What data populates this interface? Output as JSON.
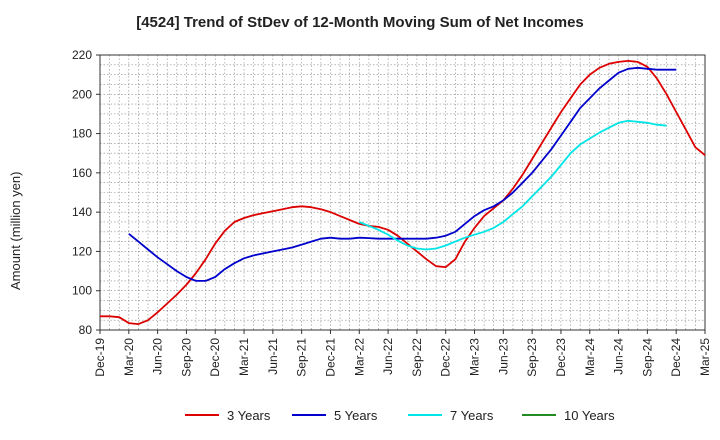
{
  "chart_data": {
    "type": "line",
    "title": "[4524]  Trend of StDev of 12-Month Moving Sum of Net Incomes",
    "ylabel": "Amount (million yen)",
    "xlabel": "",
    "ylim": [
      80,
      220
    ],
    "yticks": [
      80,
      100,
      120,
      140,
      160,
      180,
      200,
      220
    ],
    "xticks": [
      "Dec-19",
      "Mar-20",
      "Jun-20",
      "Sep-20",
      "Dec-20",
      "Mar-21",
      "Jun-21",
      "Sep-21",
      "Dec-21",
      "Mar-22",
      "Jun-22",
      "Sep-22",
      "Dec-22",
      "Mar-23",
      "Jun-23",
      "Sep-23",
      "Dec-23",
      "Mar-24",
      "Jun-24",
      "Sep-24",
      "Dec-24",
      "Mar-25"
    ],
    "grid": true,
    "legend_position": "bottom",
    "series": [
      {
        "name": "3 Years",
        "color": "#dd0000",
        "start_index": 0,
        "values": [
          87,
          87,
          86.5,
          83.5,
          83,
          85,
          89,
          93.5,
          98,
          103,
          109,
          116,
          124,
          130.5,
          135,
          137,
          138.5,
          139.5,
          140.5,
          141.5,
          142.5,
          143,
          142.5,
          141.5,
          140,
          138,
          136,
          134,
          133,
          132.5,
          131,
          128,
          124,
          120,
          116,
          112.5,
          112,
          116,
          125,
          132,
          138,
          142,
          146,
          152,
          159,
          167,
          175,
          183,
          191,
          198,
          205,
          210,
          213.5,
          215.5,
          216.5,
          217,
          216.5,
          214,
          208,
          200,
          191,
          182,
          173,
          169
        ]
      },
      {
        "name": "5 Years",
        "color": "#0000cc",
        "start_index": 3,
        "values": [
          129,
          125,
          121,
          117,
          113.5,
          110,
          107,
          105,
          105,
          107,
          111,
          114,
          116.5,
          118,
          119,
          120,
          121,
          122,
          123.5,
          125,
          126.5,
          127,
          126.5,
          126.5,
          127,
          126.8,
          126.5,
          126.5,
          126.5,
          126.5,
          126.5,
          126.5,
          127,
          128,
          130,
          134,
          138,
          141,
          143,
          146,
          150,
          155,
          160,
          166,
          172,
          179,
          186,
          193,
          198,
          203,
          207,
          211,
          213,
          213.5,
          213,
          212.5,
          212.5,
          212.5
        ]
      },
      {
        "name": "7 Years",
        "color": "#00e5e5",
        "start_index": 27,
        "values": [
          135,
          133,
          131,
          128.5,
          125.5,
          123,
          121.5,
          121,
          121.5,
          123,
          125,
          127,
          128.5,
          130,
          132,
          135,
          139,
          143,
          148,
          153,
          158,
          164,
          170,
          174.5,
          177.5,
          180.5,
          183,
          185.5,
          186.5,
          186,
          185.5,
          184.5,
          184
        ]
      },
      {
        "name": "10 Years",
        "color": "#228b22",
        "start_index": 0,
        "values": []
      }
    ]
  }
}
